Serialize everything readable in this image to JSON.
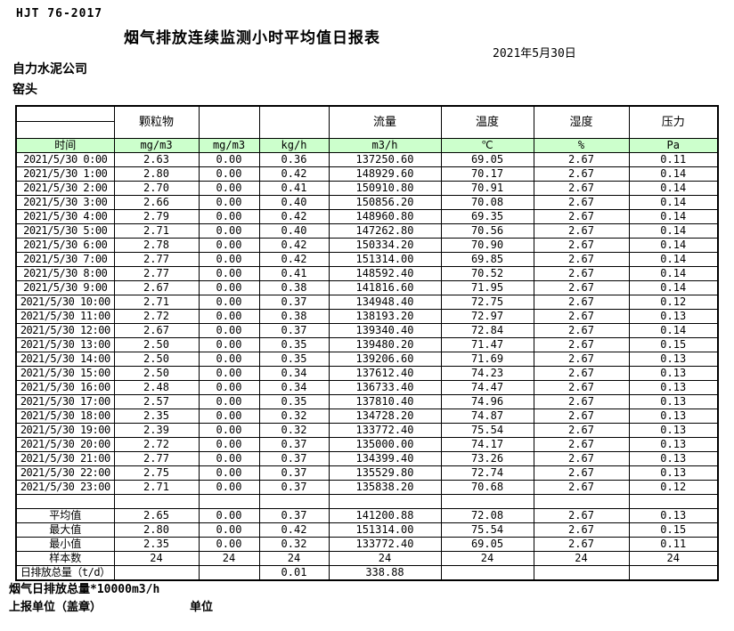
{
  "header": {
    "standard": "HJT 76-2017",
    "title": "烟气排放连续监测小时平均值日报表",
    "date": "2021年5月30日",
    "company": "自力水泥公司",
    "station": "窑头"
  },
  "colors": {
    "header_row_bg": "#ccffcc",
    "border": "#000000"
  },
  "table": {
    "group_headers": [
      "",
      "颗粒物",
      "",
      "",
      "流量",
      "温度",
      "湿度",
      "压力"
    ],
    "unit_headers": [
      "时间",
      "mg/m3",
      "mg/m3",
      "kg/h",
      "m3/h",
      "℃",
      "%",
      "Pa"
    ],
    "rows": [
      [
        "2021/5/30 0:00",
        "2.63",
        "0.00",
        "0.36",
        "137250.60",
        "69.05",
        "2.67",
        "0.11"
      ],
      [
        "2021/5/30 1:00",
        "2.80",
        "0.00",
        "0.42",
        "148929.60",
        "70.17",
        "2.67",
        "0.14"
      ],
      [
        "2021/5/30 2:00",
        "2.70",
        "0.00",
        "0.41",
        "150910.80",
        "70.91",
        "2.67",
        "0.14"
      ],
      [
        "2021/5/30 3:00",
        "2.66",
        "0.00",
        "0.40",
        "150856.20",
        "70.08",
        "2.67",
        "0.14"
      ],
      [
        "2021/5/30 4:00",
        "2.79",
        "0.00",
        "0.42",
        "148960.80",
        "69.35",
        "2.67",
        "0.14"
      ],
      [
        "2021/5/30 5:00",
        "2.71",
        "0.00",
        "0.40",
        "147262.80",
        "70.56",
        "2.67",
        "0.14"
      ],
      [
        "2021/5/30 6:00",
        "2.78",
        "0.00",
        "0.42",
        "150334.20",
        "70.90",
        "2.67",
        "0.14"
      ],
      [
        "2021/5/30 7:00",
        "2.77",
        "0.00",
        "0.42",
        "151314.00",
        "69.85",
        "2.67",
        "0.14"
      ],
      [
        "2021/5/30 8:00",
        "2.77",
        "0.00",
        "0.41",
        "148592.40",
        "70.52",
        "2.67",
        "0.14"
      ],
      [
        "2021/5/30 9:00",
        "2.67",
        "0.00",
        "0.38",
        "141816.60",
        "71.95",
        "2.67",
        "0.14"
      ],
      [
        "2021/5/30 10:00",
        "2.71",
        "0.00",
        "0.37",
        "134948.40",
        "72.75",
        "2.67",
        "0.12"
      ],
      [
        "2021/5/30 11:00",
        "2.72",
        "0.00",
        "0.38",
        "138193.20",
        "72.97",
        "2.67",
        "0.13"
      ],
      [
        "2021/5/30 12:00",
        "2.67",
        "0.00",
        "0.37",
        "139340.40",
        "72.84",
        "2.67",
        "0.14"
      ],
      [
        "2021/5/30 13:00",
        "2.50",
        "0.00",
        "0.35",
        "139480.20",
        "71.47",
        "2.67",
        "0.15"
      ],
      [
        "2021/5/30 14:00",
        "2.50",
        "0.00",
        "0.35",
        "139206.60",
        "71.69",
        "2.67",
        "0.13"
      ],
      [
        "2021/5/30 15:00",
        "2.50",
        "0.00",
        "0.34",
        "137612.40",
        "74.23",
        "2.67",
        "0.13"
      ],
      [
        "2021/5/30 16:00",
        "2.48",
        "0.00",
        "0.34",
        "136733.40",
        "74.47",
        "2.67",
        "0.13"
      ],
      [
        "2021/5/30 17:00",
        "2.57",
        "0.00",
        "0.35",
        "137810.40",
        "74.96",
        "2.67",
        "0.13"
      ],
      [
        "2021/5/30 18:00",
        "2.35",
        "0.00",
        "0.32",
        "134728.20",
        "74.87",
        "2.67",
        "0.13"
      ],
      [
        "2021/5/30 19:00",
        "2.39",
        "0.00",
        "0.32",
        "133772.40",
        "75.54",
        "2.67",
        "0.13"
      ],
      [
        "2021/5/30 20:00",
        "2.72",
        "0.00",
        "0.37",
        "135000.00",
        "74.17",
        "2.67",
        "0.13"
      ],
      [
        "2021/5/30 21:00",
        "2.77",
        "0.00",
        "0.37",
        "134399.40",
        "73.26",
        "2.67",
        "0.13"
      ],
      [
        "2021/5/30 22:00",
        "2.75",
        "0.00",
        "0.37",
        "135529.80",
        "72.74",
        "2.67",
        "0.13"
      ],
      [
        "2021/5/30 23:00",
        "2.71",
        "0.00",
        "0.37",
        "135838.20",
        "70.68",
        "2.67",
        "0.12"
      ]
    ],
    "summary": [
      [
        "平均值",
        "2.65",
        "0.00",
        "0.37",
        "141200.88",
        "72.08",
        "2.67",
        "0.13"
      ],
      [
        "最大值",
        "2.80",
        "0.00",
        "0.42",
        "151314.00",
        "75.54",
        "2.67",
        "0.15"
      ],
      [
        "最小值",
        "2.35",
        "0.00",
        "0.32",
        "133772.40",
        "69.05",
        "2.67",
        "0.11"
      ],
      [
        "样本数",
        "24",
        "24",
        "24",
        "24",
        "24",
        "24",
        "24"
      ],
      [
        "日排放总量（t/d）",
        "",
        "",
        "0.01",
        "338.88",
        "",
        "",
        ""
      ]
    ]
  },
  "footer": {
    "note": "烟气日排放总量*10000m3/h",
    "report_unit": "上报单位（盖章）",
    "unit": "单位"
  }
}
